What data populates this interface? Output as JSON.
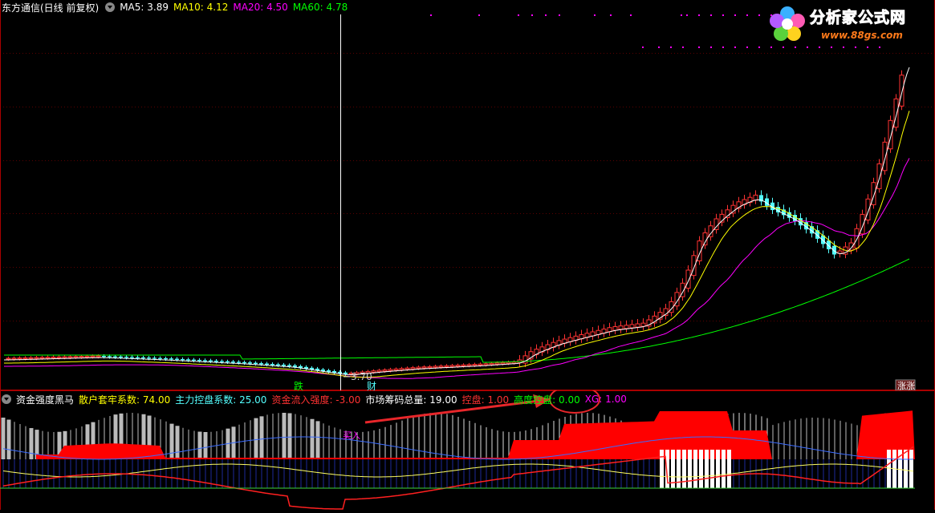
{
  "header": {
    "title": "东方通信(日线 前复权)",
    "ma5": "MA5: 3.89",
    "ma10": "MA10: 4.12",
    "ma20": "MA20: 4.50",
    "ma60": "MA60: 4.78"
  },
  "logo": {
    "brand": "分析家公式网",
    "url": "www.88gs.com"
  },
  "price_labels": {
    "low_price": "3.70",
    "marker_die": "跌",
    "marker_cai": "财",
    "marker_zhangzhang": "涨涨"
  },
  "indicator": {
    "name": "资金强度黑马",
    "retail_trap": "散户套牢系数: 74.00",
    "main_control": "主力控盘系数: 25.00",
    "inflow_strength": "资金流入强度: -3.00",
    "chip_total": "市场筹码总量: 19.00",
    "control": "控盘: 1.00",
    "high_control": "高度控盘: 0.00",
    "xg": "XG: 1.00",
    "annotation": "买入"
  },
  "colors": {
    "background": "#000000",
    "up_candle": "#ff3232",
    "down_candle": "#54ffff",
    "ma5": "#ffffff",
    "ma10": "#ffff00",
    "ma20": "#ff00ff",
    "ma60": "#00ff00",
    "border": "#aa0000",
    "arrow": "#e8262a"
  },
  "icons": {
    "settings": "gear-icon",
    "logo": "flower-logo-icon"
  }
}
